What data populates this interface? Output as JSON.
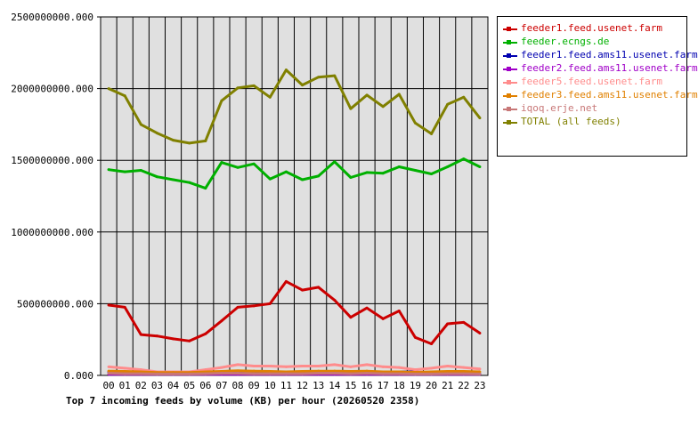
{
  "chart_data": {
    "type": "line",
    "title": "Top 7 incoming feeds by volume (KB) per hour (20260520 2358)",
    "xlabel": "",
    "ylabel": "",
    "categories": [
      "00",
      "01",
      "02",
      "03",
      "04",
      "05",
      "06",
      "07",
      "08",
      "09",
      "10",
      "11",
      "12",
      "13",
      "14",
      "15",
      "16",
      "17",
      "18",
      "19",
      "20",
      "21",
      "22",
      "23"
    ],
    "ylim": [
      0,
      2500000000
    ],
    "yticks": [
      0,
      500000000,
      1000000000,
      1500000000,
      2000000000,
      2500000000
    ],
    "ytick_labels": [
      "0.000",
      "500000000.000",
      "1000000000.000",
      "1500000000.000",
      "2000000000.000",
      "2500000000.000"
    ],
    "grid": true,
    "legend_position": "right",
    "series": [
      {
        "name": "feeder1.feed.usenet.farm",
        "color": "#cc0000",
        "values": [
          490000000,
          475000000,
          285000000,
          275000000,
          255000000,
          240000000,
          290000000,
          380000000,
          475000000,
          485000000,
          500000000,
          655000000,
          595000000,
          615000000,
          525000000,
          405000000,
          470000000,
          395000000,
          450000000,
          265000000,
          220000000,
          360000000,
          370000000,
          295000000
        ]
      },
      {
        "name": "feeder.ecngs.de",
        "color": "#00b000",
        "values": [
          1435000000,
          1420000000,
          1430000000,
          1385000000,
          1365000000,
          1345000000,
          1305000000,
          1485000000,
          1450000000,
          1475000000,
          1370000000,
          1420000000,
          1365000000,
          1390000000,
          1490000000,
          1380000000,
          1415000000,
          1410000000,
          1455000000,
          1430000000,
          1405000000,
          1455000000,
          1510000000,
          1455000000
        ]
      },
      {
        "name": "feeder1.feed.ams11.usenet.farm",
        "color": "#0000b0",
        "values": [
          25000000,
          20000000,
          15000000,
          12000000,
          10000000,
          10000000,
          12000000,
          18000000,
          22000000,
          15000000,
          12000000,
          12000000,
          12000000,
          15000000,
          15000000,
          12000000,
          15000000,
          20000000,
          25000000,
          25000000,
          12000000,
          12000000,
          15000000,
          12000000
        ]
      },
      {
        "name": "feeder2.feed.ams11.usenet.farm",
        "color": "#a000c8",
        "values": [
          8000000,
          8000000,
          8000000,
          8000000,
          8000000,
          8000000,
          8000000,
          8000000,
          8000000,
          8000000,
          8000000,
          8000000,
          8000000,
          8000000,
          8000000,
          8000000,
          8000000,
          8000000,
          8000000,
          8000000,
          8000000,
          8000000,
          8000000,
          8000000
        ]
      },
      {
        "name": "feeder5.feed.usenet.farm",
        "color": "#ff8c8c",
        "values": [
          60000000,
          50000000,
          40000000,
          25000000,
          25000000,
          25000000,
          40000000,
          55000000,
          75000000,
          65000000,
          65000000,
          60000000,
          65000000,
          65000000,
          75000000,
          60000000,
          75000000,
          60000000,
          55000000,
          40000000,
          50000000,
          65000000,
          55000000,
          45000000
        ]
      },
      {
        "name": "feeder3.feed.ams11.usenet.farm",
        "color": "#e08000",
        "values": [
          30000000,
          28000000,
          25000000,
          20000000,
          20000000,
          20000000,
          25000000,
          28000000,
          32000000,
          30000000,
          28000000,
          25000000,
          28000000,
          30000000,
          30000000,
          28000000,
          30000000,
          25000000,
          25000000,
          22000000,
          25000000,
          28000000,
          28000000,
          25000000
        ]
      },
      {
        "name": "iqoq.erje.net",
        "color": "#c87878",
        "values": [
          15000000,
          12000000,
          12000000,
          10000000,
          10000000,
          10000000,
          12000000,
          15000000,
          15000000,
          12000000,
          12000000,
          12000000,
          12000000,
          15000000,
          15000000,
          12000000,
          15000000,
          12000000,
          12000000,
          10000000,
          10000000,
          12000000,
          12000000,
          10000000
        ]
      },
      {
        "name": "TOTAL (all feeds)",
        "color": "#808000",
        "values": [
          2000000000,
          1950000000,
          1750000000,
          1690000000,
          1640000000,
          1620000000,
          1635000000,
          1915000000,
          2005000000,
          2020000000,
          1940000000,
          2130000000,
          2025000000,
          2080000000,
          2090000000,
          1860000000,
          1955000000,
          1875000000,
          1960000000,
          1760000000,
          1685000000,
          1890000000,
          1940000000,
          1795000000
        ]
      }
    ]
  }
}
